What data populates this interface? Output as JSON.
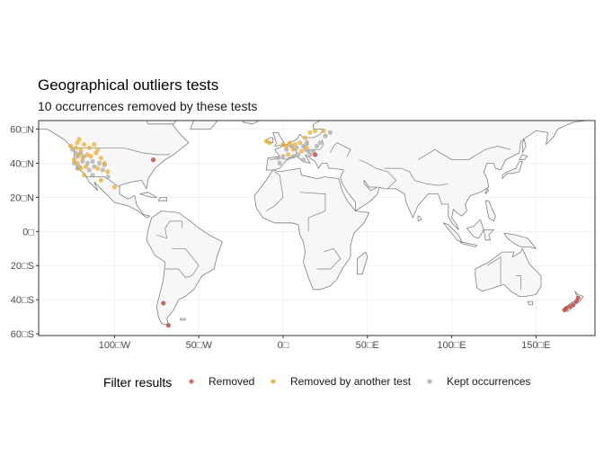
{
  "title": "Geographical outliers tests",
  "subtitle": "10 occurrences removed by these tests",
  "colors": {
    "removed": "#c0504d",
    "removed_by_another_test": "#e8a92b",
    "kept": "#a6a6a6",
    "panel_border": "#333333",
    "land_border": "#808080"
  },
  "axes": {
    "x_ticks": [
      {
        "value": -100,
        "label": "100□W"
      },
      {
        "value": -50,
        "label": "50□W"
      },
      {
        "value": 0,
        "label": "0□"
      },
      {
        "value": 50,
        "label": "50□E"
      },
      {
        "value": 100,
        "label": "100□E"
      },
      {
        "value": 150,
        "label": "150□E"
      }
    ],
    "y_ticks": [
      {
        "value": 60,
        "label": "60□N"
      },
      {
        "value": 40,
        "label": "40□N"
      },
      {
        "value": 20,
        "label": "20□N"
      },
      {
        "value": 0,
        "label": "0□"
      },
      {
        "value": -20,
        "label": "20□S"
      },
      {
        "value": -40,
        "label": "40□S"
      },
      {
        "value": -60,
        "label": "60□S"
      }
    ]
  },
  "legend": {
    "title": "Filter results",
    "items": [
      {
        "label": "Removed",
        "color": "#c0504d"
      },
      {
        "label": "Removed by another test",
        "color": "#e8a92b"
      },
      {
        "label": "Kept occurrences",
        "color": "#a6a6a6"
      }
    ]
  },
  "chart_data": {
    "type": "scatter",
    "projection": "equirectangular",
    "xlim": [
      -145,
      185
    ],
    "ylim": [
      -61,
      65
    ],
    "series": [
      {
        "name": "Removed",
        "color": "#c0504d",
        "points": [
          [
            -77,
            42
          ],
          [
            19,
            45
          ],
          [
            -71,
            -42
          ],
          [
            -68,
            -55
          ],
          [
            167,
            -46
          ],
          [
            170,
            -44
          ],
          [
            172,
            -43
          ],
          [
            174,
            -41
          ],
          [
            175,
            -39
          ],
          [
            168,
            -45
          ]
        ]
      },
      {
        "name": "Removed by another test",
        "color": "#e8a92b",
        "points": [
          [
            -122,
            52
          ],
          [
            -123,
            49
          ],
          [
            -120,
            48
          ],
          [
            -118,
            51
          ],
          [
            -115,
            49
          ],
          [
            -112,
            51
          ],
          [
            -110,
            48
          ],
          [
            -121,
            45
          ],
          [
            -119,
            43
          ],
          [
            -116,
            45
          ],
          [
            -114,
            44
          ],
          [
            -111,
            46
          ],
          [
            -108,
            43
          ],
          [
            -106,
            40
          ],
          [
            -122,
            40
          ],
          [
            -120,
            37
          ],
          [
            -117,
            38
          ],
          [
            -110,
            37
          ],
          [
            -104,
            35
          ],
          [
            -108,
            30
          ],
          [
            -100,
            26
          ],
          [
            -118,
            33
          ],
          [
            -124,
            42
          ],
          [
            -121,
            54
          ],
          [
            -126,
            50
          ],
          [
            -10,
            53
          ],
          [
            -8,
            52
          ],
          [
            2,
            50
          ],
          [
            4,
            52
          ],
          [
            7,
            51
          ],
          [
            10,
            52
          ],
          [
            13,
            55
          ],
          [
            16,
            58
          ],
          [
            19,
            59
          ],
          [
            24,
            59
          ],
          [
            6,
            48
          ],
          [
            0,
            51
          ],
          [
            3,
            45
          ],
          [
            14,
            49
          ],
          [
            11,
            47
          ]
        ]
      },
      {
        "name": "Kept occurrences",
        "color": "#a6a6a6",
        "points": [
          [
            -125,
            48
          ],
          [
            -123,
            46
          ],
          [
            -122,
            44
          ],
          [
            -120,
            46
          ],
          [
            -118,
            44
          ],
          [
            -124,
            40
          ],
          [
            -121,
            38
          ],
          [
            -119,
            41
          ],
          [
            -116,
            40
          ],
          [
            -113,
            41
          ],
          [
            -112,
            38
          ],
          [
            -109,
            40
          ],
          [
            -106,
            39
          ],
          [
            -107,
            36
          ],
          [
            -115,
            36
          ],
          [
            -104,
            32
          ],
          [
            -113,
            33
          ],
          [
            -122,
            37
          ],
          [
            2,
            48
          ],
          [
            5,
            50
          ],
          [
            8,
            49
          ],
          [
            12,
            50
          ],
          [
            15,
            47
          ],
          [
            9,
            45
          ],
          [
            18,
            47
          ],
          [
            20,
            50
          ],
          [
            22,
            52
          ],
          [
            25,
            56
          ],
          [
            28,
            58
          ],
          [
            12,
            42
          ],
          [
            6,
            44
          ],
          [
            -3,
            43
          ],
          [
            -2,
            40
          ],
          [
            0,
            44
          ],
          [
            14,
            52
          ],
          [
            16,
            45
          ]
        ]
      }
    ]
  }
}
